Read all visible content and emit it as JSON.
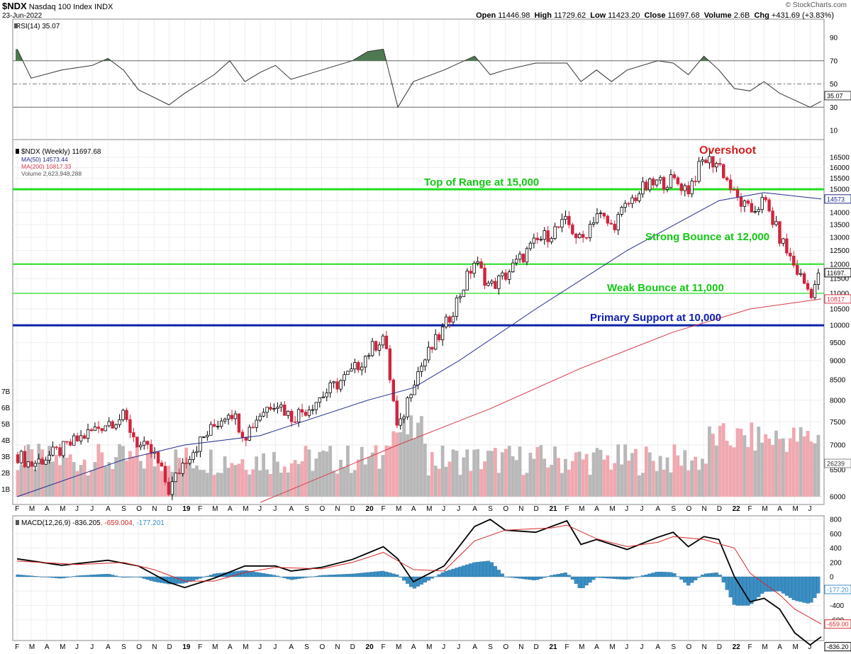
{
  "header": {
    "ticker": "$NDX",
    "name": "Nasdaq 100 Index",
    "exchange": "INDX",
    "date": "23-Jun-2022",
    "brand": "© StockCharts.com",
    "ohlc": {
      "open_label": "Open",
      "open": "11446.98",
      "high_label": "High",
      "high": "11729.62",
      "low_label": "Low",
      "low": "11423.20",
      "close_label": "Close",
      "close": "11697.68",
      "volume_label": "Volume",
      "volume": "2.6B",
      "chg_label": "Chg",
      "chg": "+431.69 (+3.83%)"
    }
  },
  "colors": {
    "up": "#000000",
    "down": "#d2233c",
    "ma50": "#1f2a8a",
    "ma200": "#d63a4a",
    "green_line": "#22dd22",
    "blue_line": "#0a22aa",
    "green_label": "#14c814",
    "blue_label": "#1020b0",
    "red_label": "#d21e1e",
    "vol_up": "#b8b8b8",
    "vol_down": "#f0a8b0",
    "macd": "#000000",
    "signal": "#d62828",
    "hist": "#3a8fc4",
    "rsi_fill": "#4e7a52"
  },
  "panels": {
    "rsi": {
      "label": "RSI(14) 35.07",
      "value_tag": "35.07",
      "ticks": [
        "90",
        "70",
        "50",
        "30",
        "10"
      ]
    },
    "price": {
      "legend": {
        "main": "$NDX (Weekly) 11697.68",
        "ma50": "MA(50) 14573.44",
        "ma200": "MA(200) 10817.33",
        "volume": "Volume 2,623,948,288"
      },
      "tags": {
        "close": "11697.",
        "ma50": "14573",
        "ma200": "10817",
        "volume": "26239"
      },
      "ticks": [
        "16500",
        "16000",
        "15500",
        "15000",
        "14500",
        "14000",
        "13500",
        "13000",
        "12500",
        "12000",
        "11500",
        "11000",
        "10500",
        "10000",
        "9500",
        "9000",
        "8500",
        "8000",
        "7500",
        "7000",
        "6500",
        "6000"
      ],
      "volume_ticks": [
        "7B",
        "6B",
        "5B",
        "4B",
        "3B",
        "2B",
        "1B"
      ],
      "annotations": {
        "overshoot": "Overshoot",
        "top": "Top of Range at 15,000",
        "strong": "Strong Bounce at 12,000",
        "weak": "Weak Bounce at 11,000",
        "primary": "Primary Support at 10,000"
      }
    },
    "macd": {
      "label_main": "MACD(12,26,9) -836.205",
      "label_signal": ", -659.004",
      "label_hist": ", -177.201",
      "ticks": [
        "800",
        "600",
        "400",
        "200",
        "0",
        "-200",
        "-400",
        "-600"
      ],
      "tags": {
        "hist": "-177.20",
        "signal": "-659.00",
        "macd": "-836.20"
      }
    }
  },
  "x_axis": [
    "F",
    "M",
    "A",
    "M",
    "J",
    "J",
    "A",
    "S",
    "O",
    "N",
    "D",
    "19",
    "F",
    "M",
    "A",
    "M",
    "J",
    "J",
    "A",
    "S",
    "O",
    "N",
    "D",
    "20",
    "F",
    "M",
    "A",
    "M",
    "J",
    "J",
    "A",
    "S",
    "O",
    "N",
    "D",
    "21",
    "F",
    "M",
    "A",
    "M",
    "J",
    "J",
    "A",
    "S",
    "O",
    "N",
    "D",
    "22",
    "F",
    "M",
    "A",
    "M",
    "J"
  ],
  "chart_data": {
    "type": "candlestick",
    "title": "$NDX Nasdaq 100 Index INDX",
    "frequency": "weekly",
    "range": [
      "2018-02",
      "2022-06-23"
    ],
    "y_scale": "log",
    "ylim": [
      5900,
      16900
    ],
    "last": {
      "open": 11446.98,
      "high": 11729.62,
      "low": 11423.2,
      "close": 11697.68,
      "volume": 2623948288
    },
    "close_path": [
      [
        "2018-02",
        6800
      ],
      [
        "2018-03",
        6600
      ],
      [
        "2018-05",
        6900
      ],
      [
        "2018-07",
        7300
      ],
      [
        "2018-08",
        7500
      ],
      [
        "2018-09",
        7600
      ],
      [
        "2018-10",
        7000
      ],
      [
        "2018-11",
        6800
      ],
      [
        "2018-12",
        6100
      ],
      [
        "2019-01",
        6700
      ],
      [
        "2019-03",
        7400
      ],
      [
        "2019-04",
        7800
      ],
      [
        "2019-05",
        7200
      ],
      [
        "2019-06",
        7700
      ],
      [
        "2019-07",
        8000
      ],
      [
        "2019-08",
        7600
      ],
      [
        "2019-09",
        7800
      ],
      [
        "2019-10",
        8100
      ],
      [
        "2019-11",
        8400
      ],
      [
        "2019-12",
        8700
      ],
      [
        "2020-01",
        9200
      ],
      [
        "2020-02",
        9700
      ],
      [
        "2020-03",
        7200
      ],
      [
        "2020-04",
        8500
      ],
      [
        "2020-06",
        9900
      ],
      [
        "2020-07",
        10900
      ],
      [
        "2020-08",
        12100
      ],
      [
        "2020-09",
        11200
      ],
      [
        "2020-10",
        11600
      ],
      [
        "2020-11",
        12200
      ],
      [
        "2020-12",
        12800
      ],
      [
        "2021-01",
        13200
      ],
      [
        "2021-02",
        13600
      ],
      [
        "2021-03",
        12800
      ],
      [
        "2021-04",
        14000
      ],
      [
        "2021-05",
        13400
      ],
      [
        "2021-06",
        14300
      ],
      [
        "2021-07",
        15000
      ],
      [
        "2021-08",
        15300
      ],
      [
        "2021-09",
        15400
      ],
      [
        "2021-10",
        15000
      ],
      [
        "2021-11",
        16400
      ],
      [
        "2021-12",
        16200
      ],
      [
        "2022-01",
        14700
      ],
      [
        "2022-02",
        14000
      ],
      [
        "2022-03",
        14500
      ],
      [
        "2022-04",
        13000
      ],
      [
        "2022-05",
        11900
      ],
      [
        "2022-06",
        11000
      ],
      [
        "2022-06-23",
        11698
      ]
    ],
    "ma50_path": [
      [
        "2018-02",
        6000
      ],
      [
        "2018-09",
        6700
      ],
      [
        "2019-01",
        7000
      ],
      [
        "2019-06",
        7200
      ],
      [
        "2020-01",
        8000
      ],
      [
        "2020-04",
        8300
      ],
      [
        "2020-07",
        9000
      ],
      [
        "2020-12",
        10500
      ],
      [
        "2021-06",
        12500
      ],
      [
        "2021-12",
        14500
      ],
      [
        "2022-03",
        14850
      ],
      [
        "2022-06-23",
        14573
      ]
    ],
    "ma200_path": [
      [
        "2019-06",
        5900
      ],
      [
        "2020-03",
        7000
      ],
      [
        "2020-09",
        7800
      ],
      [
        "2021-03",
        8800
      ],
      [
        "2021-09",
        9800
      ],
      [
        "2022-02",
        10500
      ],
      [
        "2022-06-23",
        10817
      ]
    ],
    "horizontal_lines": [
      {
        "label": "Top of Range at 15,000",
        "value": 15000
      },
      {
        "label": "Strong Bounce at 12,000",
        "value": 12000
      },
      {
        "label": "Weak Bounce at 11,000",
        "value": 11000
      },
      {
        "label": "Primary Support at 10,000",
        "value": 10000
      }
    ],
    "rsi_path": [
      [
        "2018-02",
        80
      ],
      [
        "2018-03",
        55
      ],
      [
        "2018-05",
        62
      ],
      [
        "2018-07",
        66
      ],
      [
        "2018-08",
        72
      ],
      [
        "2018-09",
        62
      ],
      [
        "2018-10",
        45
      ],
      [
        "2018-12",
        32
      ],
      [
        "2019-01",
        42
      ],
      [
        "2019-03",
        58
      ],
      [
        "2019-04",
        70
      ],
      [
        "2019-05",
        52
      ],
      [
        "2019-06",
        60
      ],
      [
        "2019-07",
        66
      ],
      [
        "2019-08",
        54
      ],
      [
        "2019-10",
        62
      ],
      [
        "2019-12",
        70
      ],
      [
        "2020-01",
        78
      ],
      [
        "2020-02",
        80
      ],
      [
        "2020-03",
        30
      ],
      [
        "2020-04",
        52
      ],
      [
        "2020-06",
        62
      ],
      [
        "2020-08",
        74
      ],
      [
        "2020-09",
        58
      ],
      [
        "2020-10",
        62
      ],
      [
        "2020-12",
        68
      ],
      [
        "2021-02",
        68
      ],
      [
        "2021-03",
        52
      ],
      [
        "2021-04",
        62
      ],
      [
        "2021-05",
        52
      ],
      [
        "2021-06",
        62
      ],
      [
        "2021-08",
        70
      ],
      [
        "2021-09",
        68
      ],
      [
        "2021-10",
        58
      ],
      [
        "2021-11",
        74
      ],
      [
        "2021-12",
        62
      ],
      [
        "2022-01",
        46
      ],
      [
        "2022-02",
        44
      ],
      [
        "2022-03",
        52
      ],
      [
        "2022-04",
        42
      ],
      [
        "2022-05",
        36
      ],
      [
        "2022-06",
        30
      ],
      [
        "2022-06-23",
        35.07
      ]
    ],
    "macd_path": [
      [
        "2018-02",
        250
      ],
      [
        "2018-05",
        160
      ],
      [
        "2018-08",
        230
      ],
      [
        "2018-10",
        150
      ],
      [
        "2018-12",
        -80
      ],
      [
        "2019-01",
        -150
      ],
      [
        "2019-03",
        -20
      ],
      [
        "2019-05",
        150
      ],
      [
        "2019-07",
        150
      ],
      [
        "2019-08",
        80
      ],
      [
        "2019-10",
        130
      ],
      [
        "2019-12",
        240
      ],
      [
        "2020-02",
        420
      ],
      [
        "2020-03",
        250
      ],
      [
        "2020-04",
        -70
      ],
      [
        "2020-06",
        150
      ],
      [
        "2020-08",
        700
      ],
      [
        "2020-09",
        800
      ],
      [
        "2020-10",
        650
      ],
      [
        "2020-12",
        620
      ],
      [
        "2021-02",
        780
      ],
      [
        "2021-03",
        450
      ],
      [
        "2021-04",
        520
      ],
      [
        "2021-06",
        380
      ],
      [
        "2021-08",
        550
      ],
      [
        "2021-09",
        620
      ],
      [
        "2021-10",
        420
      ],
      [
        "2021-11",
        560
      ],
      [
        "2021-12",
        520
      ],
      [
        "2022-01",
        0
      ],
      [
        "2022-02",
        -350
      ],
      [
        "2022-03",
        -300
      ],
      [
        "2022-04",
        -450
      ],
      [
        "2022-05",
        -780
      ],
      [
        "2022-06",
        -950
      ],
      [
        "2022-06-23",
        -836.205
      ]
    ],
    "signal_path": [
      [
        "2018-02",
        220
      ],
      [
        "2018-06",
        170
      ],
      [
        "2018-09",
        200
      ],
      [
        "2018-11",
        100
      ],
      [
        "2019-01",
        -60
      ],
      [
        "2019-03",
        -60
      ],
      [
        "2019-05",
        60
      ],
      [
        "2019-07",
        130
      ],
      [
        "2019-10",
        110
      ],
      [
        "2019-12",
        200
      ],
      [
        "2020-02",
        340
      ],
      [
        "2020-04",
        100
      ],
      [
        "2020-06",
        80
      ],
      [
        "2020-08",
        500
      ],
      [
        "2020-10",
        650
      ],
      [
        "2021-01",
        680
      ],
      [
        "2021-02",
        720
      ],
      [
        "2021-04",
        530
      ],
      [
        "2021-06",
        420
      ],
      [
        "2021-08",
        480
      ],
      [
        "2021-09",
        560
      ],
      [
        "2021-11",
        520
      ],
      [
        "2022-01",
        400
      ],
      [
        "2022-02",
        50
      ],
      [
        "2022-04",
        -250
      ],
      [
        "2022-05",
        -450
      ],
      [
        "2022-06-23",
        -659.004
      ]
    ]
  }
}
